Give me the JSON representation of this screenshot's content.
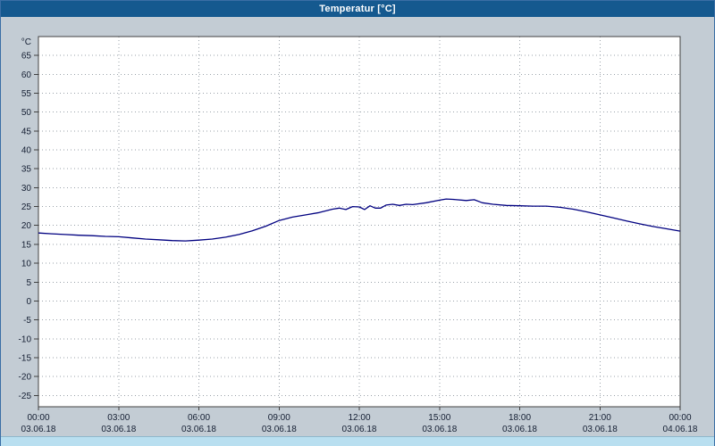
{
  "window": {
    "title": "Temperatur [°C]"
  },
  "colors": {
    "titlebar_bg": "#15598f",
    "titlebar_text": "#ffffff",
    "chart_bg": "#c3ccd4",
    "plot_bg": "#ffffff",
    "line": "#000080",
    "grid": "#9aa2aa",
    "axis_text": "#141e32",
    "plot_border": "#404040",
    "scrollbar": "#b9dff0"
  },
  "chart_data": {
    "type": "line",
    "title": "Temperatur [°C]",
    "xlabel": "",
    "ylabel": "°C",
    "ylim": [
      -28,
      70
    ],
    "y_ticks": [
      65,
      60,
      55,
      50,
      45,
      40,
      35,
      30,
      25,
      20,
      15,
      10,
      5,
      0,
      -5,
      -10,
      -15,
      -20,
      -25
    ],
    "x_hours_range": [
      0,
      24
    ],
    "x_ticks": [
      {
        "hour": 0,
        "time": "00:00",
        "date": "03.06.18"
      },
      {
        "hour": 3,
        "time": "03:00",
        "date": "03.06.18"
      },
      {
        "hour": 6,
        "time": "06:00",
        "date": "03.06.18"
      },
      {
        "hour": 9,
        "time": "09:00",
        "date": "03.06.18"
      },
      {
        "hour": 12,
        "time": "12:00",
        "date": "03.06.18"
      },
      {
        "hour": 15,
        "time": "15:00",
        "date": "03.06.18"
      },
      {
        "hour": 18,
        "time": "18:00",
        "date": "03.06.18"
      },
      {
        "hour": 21,
        "time": "21:00",
        "date": "03.06.18"
      },
      {
        "hour": 24,
        "time": "00:00",
        "date": "04.06.18"
      }
    ],
    "grid": "dotted",
    "legend": "none",
    "series": [
      {
        "name": "Temperatur",
        "color": "#000080",
        "x_hours": [
          0,
          0.5,
          1,
          1.5,
          2,
          2.5,
          3,
          3.5,
          4,
          4.5,
          5,
          5.5,
          6,
          6.5,
          7,
          7.5,
          8,
          8.5,
          9,
          9.5,
          10,
          10.5,
          11,
          11.25,
          11.5,
          11.75,
          12,
          12.2,
          12.4,
          12.6,
          12.8,
          13,
          13.25,
          13.5,
          13.75,
          14,
          14.5,
          15,
          15.25,
          15.5,
          16,
          16.3,
          16.6,
          17,
          17.5,
          18,
          18.5,
          19,
          19.5,
          20,
          20.5,
          21,
          21.5,
          22,
          22.5,
          23,
          23.5,
          24
        ],
        "values": [
          18,
          17.8,
          17.6,
          17.4,
          17.3,
          17.1,
          17,
          16.7,
          16.4,
          16.2,
          16,
          15.9,
          16.1,
          16.4,
          16.9,
          17.6,
          18.6,
          19.8,
          21.3,
          22.2,
          22.8,
          23.4,
          24.3,
          24.6,
          24.2,
          25,
          24.9,
          24.2,
          25.2,
          24.6,
          24.6,
          25.4,
          25.6,
          25.3,
          25.6,
          25.5,
          26,
          26.7,
          27,
          26.9,
          26.6,
          26.8,
          26,
          25.6,
          25.3,
          25.2,
          25.1,
          25.1,
          24.8,
          24.3,
          23.6,
          22.8,
          22,
          21.2,
          20.4,
          19.7,
          19.1,
          18.5
        ]
      }
    ]
  }
}
